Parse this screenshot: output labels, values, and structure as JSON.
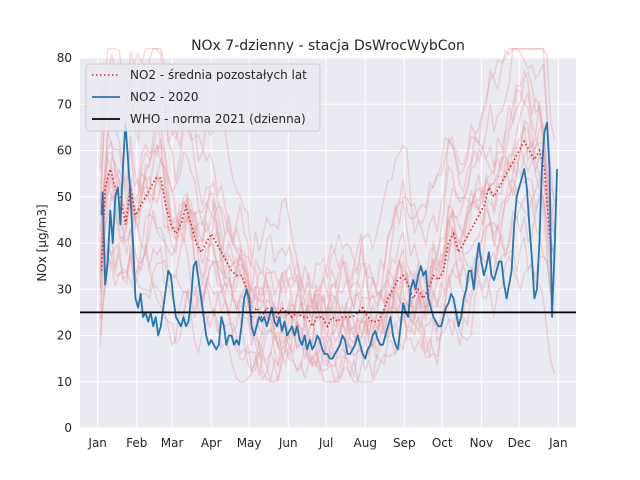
{
  "chart_data": {
    "type": "line",
    "title": "NOx 7-dzienny - stacja DsWrocWybCon",
    "ylabel": "NOx [µg/m3]",
    "xlabel": "",
    "ylim": [
      0,
      80
    ],
    "y_ticks": [
      0,
      10,
      20,
      30,
      40,
      50,
      60,
      70,
      80
    ],
    "x_ticks": [
      "Jan",
      "Feb",
      "Mar",
      "Apr",
      "May",
      "Jun",
      "Jul",
      "Aug",
      "Sep",
      "Oct",
      "Nov",
      "Dec",
      "Jan"
    ],
    "x_tick_days": [
      0,
      31,
      59,
      90,
      120,
      151,
      181,
      212,
      243,
      273,
      304,
      334,
      365
    ],
    "xlim": [
      -14,
      379
    ],
    "grid": true,
    "legend_position": "top-left",
    "colors": {
      "avg": "#d62728",
      "current": "#1f77b4",
      "who": "#000000",
      "history": "#e8959a",
      "background": "#eaeaf2",
      "grid": "#ffffff"
    },
    "legend": [
      {
        "label": "NO2 - średnia pozostałych lat",
        "style": "dotted",
        "color": "#d62728"
      },
      {
        "label": "NO2 - 2020",
        "style": "solid",
        "color": "#1f77b4"
      },
      {
        "label": "WHO - norma 2021 (dzienna)",
        "style": "solid",
        "color": "#000000"
      }
    ],
    "series": [
      {
        "name": "NO2 - średnia pozostałych lat",
        "style": "dotted",
        "points": [
          [
            3,
            34
          ],
          [
            6,
            52
          ],
          [
            10,
            56
          ],
          [
            14,
            52
          ],
          [
            18,
            50
          ],
          [
            22,
            44
          ],
          [
            26,
            52
          ],
          [
            30,
            46
          ],
          [
            34,
            48
          ],
          [
            38,
            50
          ],
          [
            42,
            52
          ],
          [
            46,
            54
          ],
          [
            50,
            54
          ],
          [
            54,
            48
          ],
          [
            58,
            44
          ],
          [
            62,
            42
          ],
          [
            66,
            44
          ],
          [
            70,
            48
          ],
          [
            74,
            44
          ],
          [
            78,
            40
          ],
          [
            82,
            38
          ],
          [
            86,
            40
          ],
          [
            90,
            42
          ],
          [
            94,
            40
          ],
          [
            98,
            38
          ],
          [
            102,
            36
          ],
          [
            106,
            34
          ],
          [
            110,
            33
          ],
          [
            114,
            33
          ],
          [
            118,
            30
          ],
          [
            122,
            24
          ],
          [
            126,
            26
          ],
          [
            130,
            24
          ],
          [
            134,
            26
          ],
          [
            138,
            25
          ],
          [
            142,
            24
          ],
          [
            146,
            26
          ],
          [
            150,
            25
          ],
          [
            154,
            24
          ],
          [
            158,
            25
          ],
          [
            162,
            24
          ],
          [
            166,
            24
          ],
          [
            170,
            22
          ],
          [
            174,
            24
          ],
          [
            178,
            24
          ],
          [
            182,
            22
          ],
          [
            186,
            24
          ],
          [
            190,
            23
          ],
          [
            194,
            24
          ],
          [
            198,
            24
          ],
          [
            202,
            24
          ],
          [
            206,
            25
          ],
          [
            210,
            26
          ],
          [
            214,
            24
          ],
          [
            218,
            23
          ],
          [
            222,
            23
          ],
          [
            226,
            25
          ],
          [
            230,
            28
          ],
          [
            234,
            30
          ],
          [
            238,
            32
          ],
          [
            242,
            33
          ],
          [
            246,
            31
          ],
          [
            250,
            28
          ],
          [
            254,
            30
          ],
          [
            258,
            28
          ],
          [
            262,
            30
          ],
          [
            266,
            33
          ],
          [
            270,
            32
          ],
          [
            274,
            34
          ],
          [
            278,
            40
          ],
          [
            282,
            42
          ],
          [
            286,
            38
          ],
          [
            290,
            40
          ],
          [
            294,
            42
          ],
          [
            298,
            44
          ],
          [
            302,
            46
          ],
          [
            306,
            48
          ],
          [
            310,
            52
          ],
          [
            314,
            50
          ],
          [
            318,
            52
          ],
          [
            322,
            54
          ],
          [
            326,
            56
          ],
          [
            330,
            58
          ],
          [
            334,
            60
          ],
          [
            338,
            62
          ],
          [
            342,
            60
          ],
          [
            346,
            58
          ],
          [
            350,
            60
          ],
          [
            354,
            56
          ],
          [
            358,
            42
          ],
          [
            360,
            38
          ]
        ]
      },
      {
        "name": "NO2 - 2020",
        "style": "solid",
        "points": [
          [
            3,
            46
          ],
          [
            4,
            51
          ],
          [
            6,
            31
          ],
          [
            8,
            36
          ],
          [
            10,
            47
          ],
          [
            12,
            40
          ],
          [
            14,
            50
          ],
          [
            16,
            52
          ],
          [
            18,
            44
          ],
          [
            20,
            56
          ],
          [
            22,
            66
          ],
          [
            24,
            58
          ],
          [
            26,
            50
          ],
          [
            28,
            40
          ],
          [
            30,
            28
          ],
          [
            32,
            26
          ],
          [
            34,
            29
          ],
          [
            36,
            24
          ],
          [
            38,
            25
          ],
          [
            40,
            23
          ],
          [
            42,
            25
          ],
          [
            44,
            22
          ],
          [
            46,
            24
          ],
          [
            48,
            20
          ],
          [
            50,
            22
          ],
          [
            52,
            26
          ],
          [
            54,
            30
          ],
          [
            56,
            34
          ],
          [
            58,
            33
          ],
          [
            60,
            28
          ],
          [
            62,
            24
          ],
          [
            64,
            23
          ],
          [
            66,
            22
          ],
          [
            68,
            24
          ],
          [
            70,
            22
          ],
          [
            72,
            23
          ],
          [
            74,
            28
          ],
          [
            76,
            35
          ],
          [
            78,
            36
          ],
          [
            80,
            32
          ],
          [
            82,
            28
          ],
          [
            84,
            24
          ],
          [
            86,
            20
          ],
          [
            88,
            18
          ],
          [
            90,
            19
          ],
          [
            92,
            18
          ],
          [
            94,
            17
          ],
          [
            96,
            18
          ],
          [
            98,
            24
          ],
          [
            100,
            22
          ],
          [
            102,
            18
          ],
          [
            104,
            20
          ],
          [
            106,
            20
          ],
          [
            108,
            18
          ],
          [
            110,
            19
          ],
          [
            112,
            18
          ],
          [
            114,
            22
          ],
          [
            116,
            28
          ],
          [
            118,
            30
          ],
          [
            120,
            28
          ],
          [
            122,
            22
          ],
          [
            124,
            20
          ],
          [
            126,
            22
          ],
          [
            128,
            24
          ],
          [
            130,
            23
          ],
          [
            132,
            24
          ],
          [
            134,
            22
          ],
          [
            136,
            24
          ],
          [
            138,
            26
          ],
          [
            140,
            23
          ],
          [
            142,
            22
          ],
          [
            144,
            24
          ],
          [
            146,
            21
          ],
          [
            148,
            23
          ],
          [
            150,
            20
          ],
          [
            152,
            21
          ],
          [
            154,
            22
          ],
          [
            156,
            20
          ],
          [
            158,
            22
          ],
          [
            160,
            19
          ],
          [
            162,
            18
          ],
          [
            164,
            20
          ],
          [
            166,
            17
          ],
          [
            168,
            19
          ],
          [
            170,
            17
          ],
          [
            172,
            18
          ],
          [
            174,
            20
          ],
          [
            176,
            19
          ],
          [
            178,
            17
          ],
          [
            180,
            16
          ],
          [
            182,
            16
          ],
          [
            184,
            15
          ],
          [
            186,
            15
          ],
          [
            188,
            16
          ],
          [
            190,
            17
          ],
          [
            192,
            18
          ],
          [
            194,
            20
          ],
          [
            196,
            19
          ],
          [
            198,
            16
          ],
          [
            200,
            16
          ],
          [
            202,
            17
          ],
          [
            204,
            18
          ],
          [
            206,
            20
          ],
          [
            208,
            18
          ],
          [
            210,
            16
          ],
          [
            212,
            15
          ],
          [
            214,
            17
          ],
          [
            216,
            18
          ],
          [
            218,
            20
          ],
          [
            220,
            21
          ],
          [
            222,
            19
          ],
          [
            224,
            18
          ],
          [
            226,
            18
          ],
          [
            228,
            20
          ],
          [
            230,
            22
          ],
          [
            232,
            24
          ],
          [
            234,
            20
          ],
          [
            236,
            18
          ],
          [
            238,
            17
          ],
          [
            240,
            22
          ],
          [
            242,
            27
          ],
          [
            244,
            25
          ],
          [
            246,
            24
          ],
          [
            248,
            30
          ],
          [
            250,
            32
          ],
          [
            252,
            30
          ],
          [
            254,
            33
          ],
          [
            256,
            35
          ],
          [
            258,
            33
          ],
          [
            260,
            34
          ],
          [
            262,
            28
          ],
          [
            264,
            26
          ],
          [
            266,
            24
          ],
          [
            268,
            23
          ],
          [
            270,
            22
          ],
          [
            272,
            22
          ],
          [
            274,
            24
          ],
          [
            276,
            26
          ],
          [
            278,
            27
          ],
          [
            280,
            29
          ],
          [
            282,
            28
          ],
          [
            284,
            25
          ],
          [
            286,
            22
          ],
          [
            288,
            24
          ],
          [
            290,
            28
          ],
          [
            292,
            30
          ],
          [
            294,
            34
          ],
          [
            296,
            34
          ],
          [
            298,
            30
          ],
          [
            300,
            36
          ],
          [
            302,
            40
          ],
          [
            304,
            36
          ],
          [
            306,
            33
          ],
          [
            308,
            35
          ],
          [
            310,
            38
          ],
          [
            312,
            33
          ],
          [
            314,
            32
          ],
          [
            316,
            34
          ],
          [
            318,
            36
          ],
          [
            320,
            36
          ],
          [
            322,
            31
          ],
          [
            324,
            28
          ],
          [
            326,
            31
          ],
          [
            328,
            34
          ],
          [
            330,
            44
          ],
          [
            332,
            50
          ],
          [
            334,
            52
          ],
          [
            336,
            54
          ],
          [
            338,
            56
          ],
          [
            340,
            52
          ],
          [
            342,
            44
          ],
          [
            344,
            37
          ],
          [
            346,
            28
          ],
          [
            348,
            30
          ],
          [
            350,
            40
          ],
          [
            352,
            56
          ],
          [
            354,
            64
          ],
          [
            356,
            66
          ],
          [
            358,
            56
          ],
          [
            360,
            24
          ],
          [
            362,
            38
          ],
          [
            364,
            56
          ]
        ]
      },
      {
        "name": "WHO - norma 2021 (dzienna)",
        "style": "solid",
        "constant": 25
      }
    ]
  }
}
